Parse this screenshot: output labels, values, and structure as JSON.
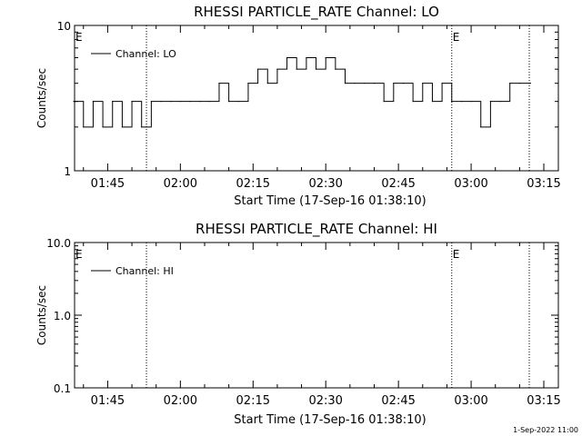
{
  "panels": [
    {
      "title": "RHESSI PARTICLE_RATE Channel: LO",
      "xlabel": "Start Time (17-Sep-16 01:38:10)",
      "ylabel": "Counts/sec",
      "yticks": [
        "1",
        "10"
      ],
      "xticks": [
        "01:45",
        "02:00",
        "02:15",
        "02:30",
        "02:45",
        "03:00",
        "03:15"
      ],
      "legend": "Channel: LO",
      "markers": [
        "E",
        "E"
      ]
    },
    {
      "title": "RHESSI PARTICLE_RATE Channel: HI",
      "xlabel": "Start Time (17-Sep-16 01:38:10)",
      "ylabel": "Counts/sec",
      "yticks": [
        "0.1",
        "1.0",
        "10.0"
      ],
      "xticks": [
        "01:45",
        "02:00",
        "02:15",
        "02:30",
        "02:45",
        "03:00",
        "03:15"
      ],
      "legend": "Channel: HI",
      "markers": [
        "E",
        "E"
      ]
    }
  ],
  "footer": "1-Sep-2022 11:00",
  "chart_data": [
    {
      "type": "line",
      "title": "RHESSI PARTICLE_RATE Channel: LO",
      "xlabel": "Start Time (17-Sep-16 01:38:10)",
      "ylabel": "Counts/sec",
      "yscale": "log",
      "ylim": [
        1,
        10
      ],
      "xlim": [
        "01:38:10",
        "03:18"
      ],
      "vertical_dotted_lines": [
        "01:53",
        "02:56",
        "03:12"
      ],
      "series": [
        {
          "name": "Channel: LO",
          "x": [
            "01:38",
            "01:40",
            "01:42",
            "01:44",
            "01:46",
            "01:48",
            "01:50",
            "01:52",
            "01:54",
            "01:56",
            "01:58",
            "02:00",
            "02:02",
            "02:04",
            "02:06",
            "02:08",
            "02:10",
            "02:12",
            "02:14",
            "02:16",
            "02:18",
            "02:20",
            "02:22",
            "02:24",
            "02:26",
            "02:28",
            "02:30",
            "02:32",
            "02:34",
            "02:36",
            "02:38",
            "02:40",
            "02:42",
            "02:44",
            "02:46",
            "02:48",
            "02:50",
            "02:52",
            "02:54",
            "02:56",
            "02:58",
            "03:00",
            "03:02",
            "03:04",
            "03:06",
            "03:08",
            "03:10",
            "03:12"
          ],
          "y": [
            3,
            2,
            3,
            2,
            3,
            2,
            3,
            2,
            3,
            3,
            3,
            3,
            3,
            3,
            3,
            4,
            3,
            3,
            4,
            5,
            4,
            5,
            6,
            5,
            6,
            5,
            6,
            5,
            4,
            4,
            4,
            4,
            3,
            4,
            4,
            3,
            4,
            3,
            4,
            3,
            3,
            3,
            2,
            3,
            3,
            4,
            4,
            4
          ]
        }
      ]
    },
    {
      "type": "line",
      "title": "RHESSI PARTICLE_RATE Channel: HI",
      "xlabel": "Start Time (17-Sep-16 01:38:10)",
      "ylabel": "Counts/sec",
      "yscale": "log",
      "ylim": [
        0.1,
        10
      ],
      "xlim": [
        "01:38:10",
        "03:18"
      ],
      "vertical_dotted_lines": [
        "01:53",
        "02:56",
        "03:12"
      ],
      "series": [
        {
          "name": "Channel: HI",
          "x": [],
          "y": []
        }
      ]
    }
  ]
}
